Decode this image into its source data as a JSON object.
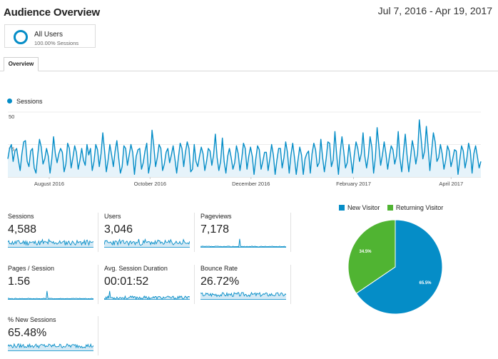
{
  "header": {
    "title": "Audience Overview",
    "date_range": "Jul 7, 2016 - Apr 19, 2017"
  },
  "segment": {
    "name": "All Users",
    "percentage": "100.00% Sessions",
    "color": "#058dc7"
  },
  "tabs": [
    {
      "label": "Overview"
    }
  ],
  "colors": {
    "sessions_line": "#058dc7",
    "sessions_fill": "#e6f3fa",
    "new_visitor": "#058dc7",
    "returning_visitor": "#50b432"
  },
  "chart_data": [
    {
      "type": "area",
      "legend": [
        "Sessions"
      ],
      "ylim": [
        0,
        50
      ],
      "y_ticks": [
        "25",
        "50"
      ],
      "x_tick_labels": [
        "August 2016",
        "October 2016",
        "December 2016",
        "February 2017",
        "April 2017"
      ],
      "x_start": "Jul 7, 2016",
      "x_end": "Apr 19, 2017",
      "series": [
        {
          "name": "Sessions",
          "values": [
            14,
            22,
            25,
            12,
            20,
            22,
            13,
            5,
            18,
            27,
            28,
            12,
            8,
            20,
            22,
            7,
            3,
            17,
            29,
            23,
            10,
            14,
            22,
            16,
            3,
            14,
            31,
            18,
            11,
            18,
            22,
            19,
            4,
            10,
            26,
            22,
            7,
            15,
            24,
            19,
            6,
            13,
            22,
            13,
            9,
            25,
            17,
            22,
            5,
            12,
            25,
            21,
            8,
            18,
            34,
            20,
            4,
            13,
            25,
            17,
            8,
            20,
            28,
            15,
            3,
            8,
            24,
            22,
            9,
            17,
            25,
            19,
            2,
            16,
            21,
            22,
            6,
            11,
            20,
            26,
            3,
            11,
            36,
            24,
            8,
            15,
            25,
            22,
            5,
            10,
            19,
            22,
            11,
            17,
            24,
            14,
            3,
            15,
            26,
            22,
            8,
            19,
            27,
            22,
            4,
            6,
            25,
            12,
            8,
            16,
            23,
            18,
            5,
            12,
            22,
            20,
            9,
            17,
            33,
            15,
            5,
            12,
            30,
            12,
            3,
            16,
            22,
            15,
            6,
            11,
            24,
            18,
            5,
            14,
            26,
            22,
            6,
            16,
            23,
            16,
            2,
            14,
            24,
            21,
            6,
            12,
            19,
            19,
            5,
            14,
            25,
            17,
            2,
            13,
            22,
            22,
            7,
            15,
            27,
            19,
            3,
            17,
            26,
            15,
            2,
            13,
            23,
            17,
            2,
            14,
            18,
            20,
            3,
            18,
            26,
            21,
            8,
            11,
            29,
            15,
            4,
            14,
            27,
            26,
            8,
            13,
            35,
            17,
            2,
            19,
            31,
            20,
            7,
            11,
            25,
            15,
            3,
            17,
            27,
            22,
            12,
            18,
            34,
            16,
            7,
            16,
            31,
            23,
            3,
            15,
            38,
            24,
            9,
            17,
            27,
            18,
            6,
            16,
            24,
            21,
            10,
            16,
            35,
            14,
            4,
            19,
            33,
            17,
            4,
            15,
            28,
            21,
            10,
            18,
            44,
            30,
            14,
            20,
            39,
            23,
            5,
            20,
            34,
            27,
            12,
            15,
            25,
            18,
            6,
            13,
            24,
            20,
            8,
            14,
            21,
            20,
            2,
            13,
            24,
            20,
            7,
            14,
            26,
            20,
            3,
            18,
            24,
            16,
            7,
            12
          ]
        }
      ]
    },
    {
      "type": "pie",
      "categories": [
        "New Visitor",
        "Returning Visitor"
      ],
      "values": [
        65.5,
        34.5
      ],
      "labels": [
        "65.5%",
        "34.5%"
      ]
    }
  ],
  "metrics": [
    {
      "label": "Sessions",
      "value": "4,588"
    },
    {
      "label": "Users",
      "value": "3,046"
    },
    {
      "label": "Pageviews",
      "value": "7,178"
    },
    {
      "label": "Pages / Session",
      "value": "1.56"
    },
    {
      "label": "Avg. Session Duration",
      "value": "00:01:52"
    },
    {
      "label": "Bounce Rate",
      "value": "26.72%"
    },
    {
      "label": "% New Sessions",
      "value": "65.48%"
    }
  ]
}
